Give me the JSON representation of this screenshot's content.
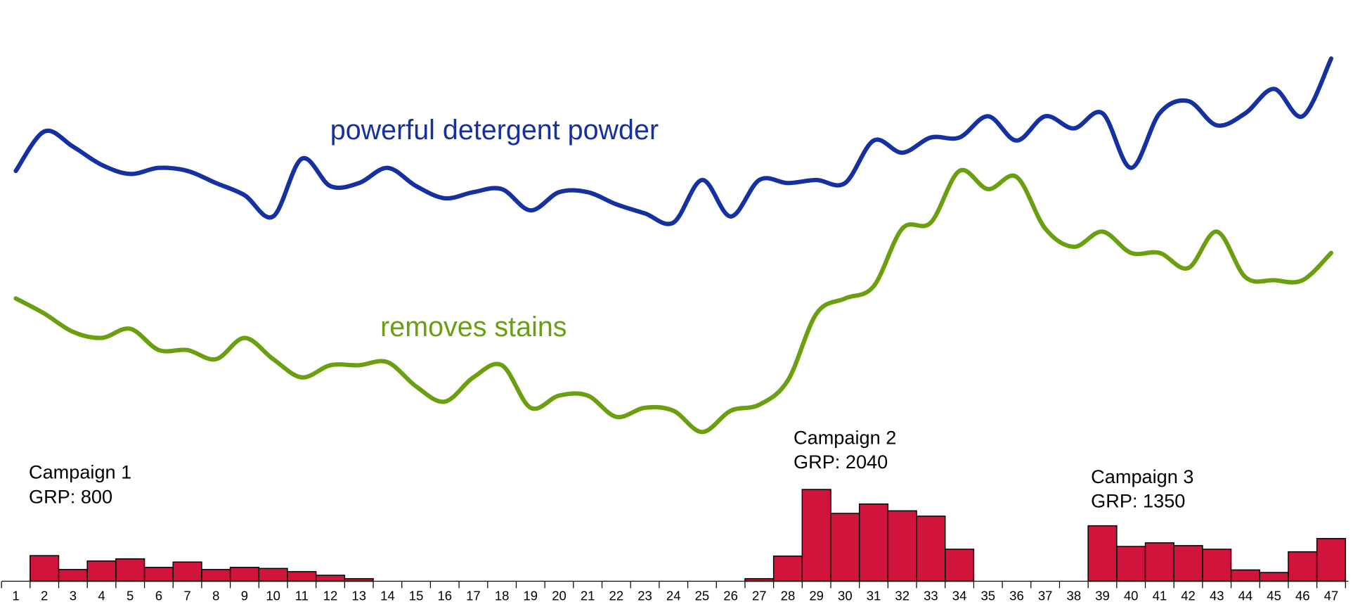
{
  "chart_data": {
    "type": "bar",
    "categories": [
      "1",
      "2",
      "3",
      "4",
      "5",
      "6",
      "7",
      "8",
      "9",
      "10",
      "11",
      "12",
      "13",
      "14",
      "15",
      "16",
      "17",
      "18",
      "19",
      "20",
      "21",
      "22",
      "23",
      "24",
      "25",
      "26",
      "27",
      "28",
      "29",
      "30",
      "31",
      "32",
      "33",
      "34",
      "35",
      "36",
      "37",
      "38",
      "39",
      "40",
      "41",
      "42",
      "43",
      "44",
      "45",
      "46",
      "47"
    ],
    "ylim": [
      0,
      140
    ],
    "y2lim": [
      0,
      500
    ],
    "series": [
      {
        "name": "powerful detergent powder",
        "type": "line",
        "color": "#1530a0",
        "values": [
          98,
          111,
          106,
          100,
          97,
          99,
          98,
          94,
          90,
          83,
          102,
          93,
          94,
          99,
          93,
          89,
          91,
          92,
          85,
          91,
          91,
          87,
          84,
          81,
          95,
          83,
          95,
          94,
          95,
          94,
          108,
          104,
          109,
          109,
          116,
          108,
          116,
          112,
          117,
          99,
          117,
          121,
          113,
          117,
          125,
          116,
          135
        ]
      },
      {
        "name": "removes stains",
        "type": "line",
        "color": "#6aa010",
        "values": [
          56,
          51,
          45,
          43,
          46,
          39,
          39,
          36,
          43,
          36,
          30,
          34,
          34,
          35,
          27,
          22,
          30,
          34,
          20,
          24,
          24,
          17,
          20,
          19,
          12,
          19,
          21,
          29,
          51,
          56,
          60,
          79,
          81,
          98,
          92,
          96,
          79,
          73,
          78,
          71,
          71,
          66,
          78,
          63,
          62,
          62,
          71
        ]
      },
      {
        "name": "GRP",
        "type": "bar",
        "axis": "y2",
        "color": "#d0143c",
        "values": [
          null,
          120,
          55,
          95,
          105,
          65,
          90,
          55,
          65,
          60,
          45,
          28,
          12,
          null,
          null,
          null,
          null,
          null,
          null,
          null,
          null,
          null,
          null,
          null,
          null,
          null,
          12,
          118,
          430,
          318,
          362,
          330,
          305,
          150,
          null,
          null,
          null,
          null,
          260,
          163,
          180,
          167,
          150,
          53,
          41,
          138,
          200
        ]
      }
    ],
    "annotations": [
      {
        "title": "Campaign 1",
        "text": "GRP: 800"
      },
      {
        "title": "Campaign 2",
        "text": "GRP: 2040"
      },
      {
        "title": "Campaign 3",
        "text": "GRP: 1350"
      }
    ]
  }
}
